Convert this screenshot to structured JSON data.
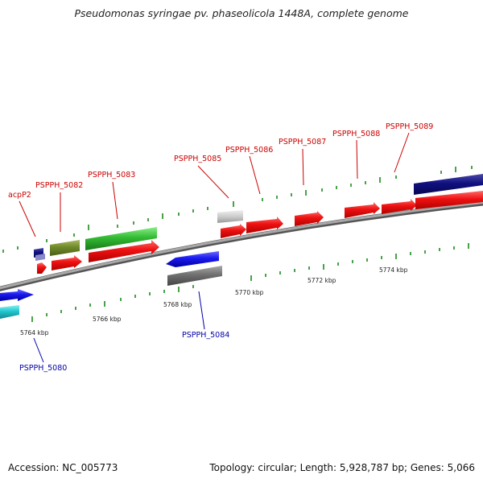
{
  "title": "Pseudomonas syringae pv. phaseolicola 1448A, complete genome",
  "footer": {
    "accession": "Accession: NC_005773",
    "topology": "Topology: circular; Length: 5,928,787 bp; Genes: 5,066"
  },
  "scale": {
    "ticks": [
      "5764 kbp",
      "5766 kbp",
      "5768 kbp",
      "5770 kbp",
      "5772 kbp",
      "5774 kbp"
    ]
  },
  "genes": {
    "acpP2": "acpP2",
    "g5080": "PSPPH_5080",
    "g5082": "PSPPH_5082",
    "g5083": "PSPPH_5083",
    "g5084": "PSPPH_5084",
    "g5085": "PSPPH_5085",
    "g5086": "PSPPH_5086",
    "g5087": "PSPPH_5087",
    "g5088": "PSPPH_5088",
    "g5089": "PSPPH_5089"
  },
  "colors": {
    "cds_forward": "#ee1111",
    "cds_reverse": "#1a1aee",
    "rna": "#33bb33",
    "label_forward": "#cc0000",
    "label_reverse": "#0000aa",
    "backbone": "#888888"
  }
}
